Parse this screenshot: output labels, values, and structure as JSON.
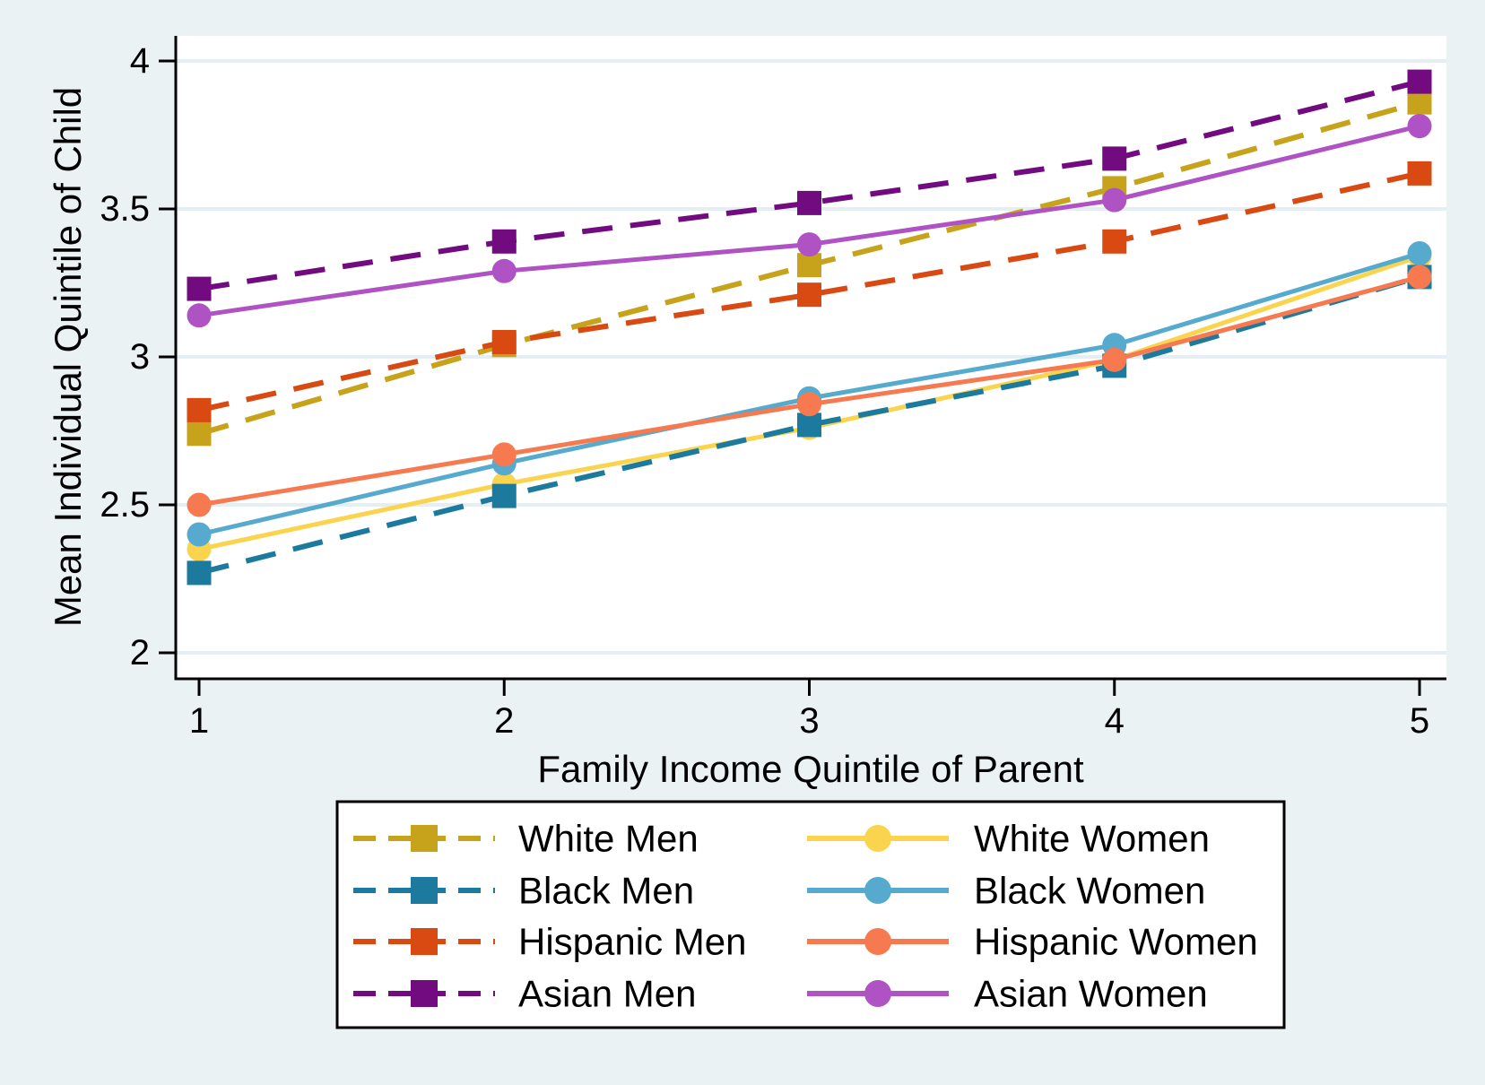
{
  "chart_data": {
    "type": "line",
    "title": "",
    "xlabel": "Family Income Quintile of Parent",
    "ylabel": "Mean Individual Quintile of Child",
    "x": [
      1,
      2,
      3,
      4,
      5
    ],
    "xticks": [
      "1",
      "2",
      "3",
      "4",
      "5"
    ],
    "xtick_values": [
      1,
      2,
      3,
      4,
      5
    ],
    "yticks": [
      "2",
      "2.5",
      "3",
      "3.5",
      "4"
    ],
    "ytick_values": [
      2,
      2.5,
      3,
      3.5,
      4
    ],
    "xlim": [
      0.92,
      5.09
    ],
    "ylim": [
      1.91,
      4.09
    ],
    "grid": "horizontal-only",
    "legend_position": "bottom-box",
    "series": [
      {
        "name": "White Men",
        "color": "#C7A31B",
        "line": "dashed",
        "marker": "square",
        "values": [
          2.74,
          3.04,
          3.31,
          3.57,
          3.86
        ]
      },
      {
        "name": "White Women",
        "color": "#FAD44F",
        "line": "solid",
        "marker": "circle",
        "values": [
          2.35,
          2.57,
          2.76,
          2.99,
          3.34
        ]
      },
      {
        "name": "Black Men",
        "color": "#1B7A9E",
        "line": "dashed",
        "marker": "square",
        "values": [
          2.27,
          2.53,
          2.77,
          2.97,
          3.27
        ]
      },
      {
        "name": "Black Women",
        "color": "#55AACD",
        "line": "solid",
        "marker": "circle",
        "values": [
          2.4,
          2.64,
          2.86,
          3.04,
          3.35
        ]
      },
      {
        "name": "Hispanic Men",
        "color": "#D94912",
        "line": "dashed",
        "marker": "square",
        "values": [
          2.82,
          3.05,
          3.21,
          3.39,
          3.62
        ]
      },
      {
        "name": "Hispanic Women",
        "color": "#F67950",
        "line": "solid",
        "marker": "circle",
        "values": [
          2.5,
          2.67,
          2.84,
          2.99,
          3.27
        ]
      },
      {
        "name": "Asian Men",
        "color": "#720B80",
        "line": "dashed",
        "marker": "square",
        "values": [
          3.23,
          3.39,
          3.52,
          3.67,
          3.93
        ]
      },
      {
        "name": "Asian Women",
        "color": "#AF52C3",
        "line": "solid",
        "marker": "circle",
        "values": [
          3.14,
          3.29,
          3.38,
          3.53,
          3.78
        ]
      }
    ],
    "legend_columns": [
      [
        "White Men",
        "Black Men",
        "Hispanic Men",
        "Asian Men"
      ],
      [
        "White Women",
        "Black Women",
        "Hispanic Women",
        "Asian Women"
      ]
    ]
  },
  "colors": {
    "background": "#EAF2F3",
    "plot_background": "#FFFFFF",
    "gridline": "#E4EEF3",
    "axis": "#000000",
    "legend_background": "#FFFFFF",
    "legend_border": "#000000"
  }
}
